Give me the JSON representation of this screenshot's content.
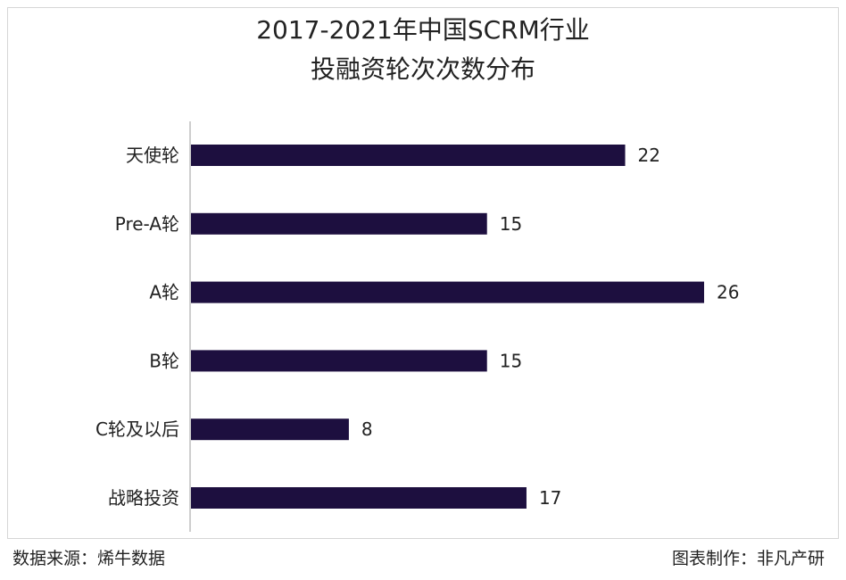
{
  "title_line1": "2017-2021年中国SCRM行业",
  "title_line2": "投融资轮次次数分布",
  "footer": {
    "source": "数据来源：烯牛数据",
    "credit": "图表制作：非凡产研"
  },
  "colors": {
    "bar": "#1d0f3f",
    "axis": "#bdbdbd",
    "text": "#222222"
  },
  "chart_data": {
    "type": "bar",
    "orientation": "horizontal",
    "categories": [
      "天使轮",
      "Pre-A轮",
      "A轮",
      "B轮",
      "C轮及以后",
      "战略投资"
    ],
    "values": [
      22,
      15,
      26,
      15,
      8,
      17
    ],
    "data_labels": [
      "22",
      "15",
      "26",
      "15",
      "8",
      "17"
    ],
    "xlim": [
      0,
      26
    ],
    "grid": false,
    "legend": "none"
  }
}
